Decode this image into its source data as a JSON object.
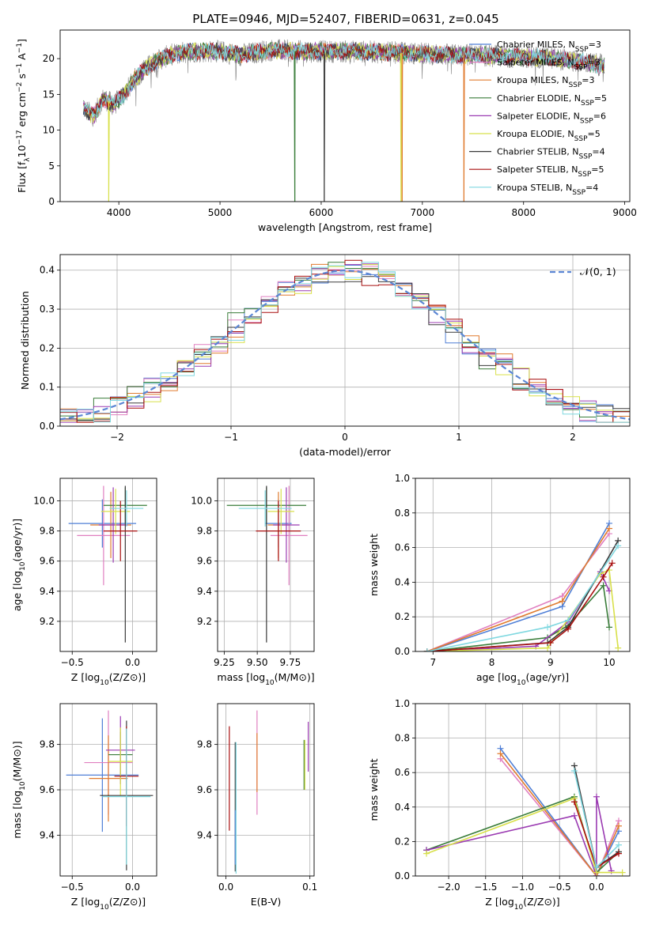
{
  "title": "PLATE=0946, MJD=52407, FIBERID=0631, z=0.045",
  "colors": [
    "#4f7fd6",
    "#e07fc0",
    "#e07b2f",
    "#3a7d3a",
    "#9b3bb2",
    "#d8e04a",
    "#3a3a3a",
    "#a80f0f",
    "#7fd8e0"
  ],
  "legend": [
    {
      "name": "Chabrier MILES, N",
      "sub": "SSP",
      "suffix": "=3"
    },
    {
      "name": "Salpeter MILES, N",
      "sub": "SSP",
      "suffix": "=3"
    },
    {
      "name": "Kroupa MILES, N",
      "sub": "SSP",
      "suffix": "=3"
    },
    {
      "name": "Chabrier ELODIE, N",
      "sub": "SSP",
      "suffix": "=5"
    },
    {
      "name": "Salpeter ELODIE, N",
      "sub": "SSP",
      "suffix": "=6"
    },
    {
      "name": "Kroupa ELODIE, N",
      "sub": "SSP",
      "suffix": "=5"
    },
    {
      "name": "Chabrier STELIB, N",
      "sub": "SSP",
      "suffix": "=4"
    },
    {
      "name": "Salpeter STELIB, N",
      "sub": "SSP",
      "suffix": "=5"
    },
    {
      "name": "Kroupa STELIB, N",
      "sub": "SSP",
      "suffix": "=4"
    }
  ],
  "chart_data": [
    {
      "id": "spectrum",
      "type": "line",
      "xlabel": "wavelength [Angstrom, rest frame]",
      "ylabel_parts": [
        "Flux [f",
        "λ",
        "10",
        "−17",
        " erg cm",
        "−2",
        " s",
        "−1",
        " A",
        "−1",
        "]"
      ],
      "xlim": [
        3420,
        9050
      ],
      "ylim": [
        0,
        24
      ],
      "xticks": [
        4000,
        5000,
        6000,
        7000,
        8000,
        9000
      ],
      "yticks": [
        0,
        5,
        10,
        15,
        20
      ],
      "data_range": [
        3650,
        8800
      ],
      "continuum": [
        [
          3650,
          13
        ],
        [
          3750,
          12
        ],
        [
          3850,
          14.5
        ],
        [
          3950,
          13.5
        ],
        [
          4050,
          15
        ],
        [
          4150,
          17
        ],
        [
          4250,
          18.5
        ],
        [
          4350,
          19.5
        ],
        [
          4500,
          20.5
        ],
        [
          4700,
          21
        ],
        [
          5000,
          21
        ],
        [
          5200,
          20.5
        ],
        [
          5500,
          21.2
        ],
        [
          5800,
          21
        ],
        [
          6100,
          21
        ],
        [
          6400,
          21
        ],
        [
          6800,
          20.8
        ],
        [
          7000,
          20.7
        ],
        [
          7300,
          20.5
        ],
        [
          7500,
          20.5
        ],
        [
          7800,
          20.3
        ],
        [
          8200,
          20.2
        ],
        [
          8600,
          19.5
        ],
        [
          8800,
          19
        ]
      ],
      "dropouts": [
        {
          "model": 5,
          "x": 3900
        },
        {
          "model": 3,
          "x": 5740
        },
        {
          "model": 6,
          "x": 6030
        },
        {
          "model": 2,
          "x": 6800
        },
        {
          "model": 5,
          "x": 6790
        },
        {
          "model": 2,
          "x": 7410
        }
      ]
    },
    {
      "id": "residuals",
      "type": "histogram",
      "xlabel": "(data-model)/error",
      "ylabel": "Normed distribution",
      "xlim": [
        -2.5,
        2.5
      ],
      "ylim": [
        0,
        0.44
      ],
      "xticks": [
        -2,
        -1,
        0,
        1,
        2
      ],
      "xticklabels": [
        "−2",
        "−1",
        "0",
        "1",
        "2"
      ],
      "yticks": [
        0,
        0.1,
        0.2,
        0.3,
        0.4
      ],
      "yticklabels": [
        "0.0",
        "0.1",
        "0.2",
        "0.3",
        "0.4"
      ],
      "bins": 34,
      "gaussian_label": "𝒩(0, 1)",
      "gaussian_color": "#5b86d4"
    },
    {
      "id": "z_age",
      "type": "errorbar",
      "xlabel_parts": [
        "Z [log",
        "10",
        "(Z/Z",
        "⊙",
        ")]"
      ],
      "ylabel_parts": [
        "age  [log",
        "10",
        "(age/yr)]"
      ],
      "xlim": [
        -0.6,
        0.2
      ],
      "ylim": [
        9.0,
        10.15
      ],
      "xticks": [
        -0.5,
        0.0
      ],
      "xticklabels": [
        "−0.5",
        "0.0"
      ],
      "yticks": [
        9.2,
        9.4,
        9.6,
        9.8,
        10.0
      ],
      "yticklabels": [
        "9.2",
        "9.4",
        "9.6",
        "9.8",
        "10.0"
      ],
      "points": [
        {
          "m": 0,
          "x": -0.25,
          "y": 9.85,
          "xerr": 0.28,
          "yerr": 0.16
        },
        {
          "m": 1,
          "x": -0.24,
          "y": 9.77,
          "xerr": 0.22,
          "yerr": 0.33
        },
        {
          "m": 2,
          "x": -0.18,
          "y": 9.84,
          "xerr": 0.17,
          "yerr": 0.22
        },
        {
          "m": 3,
          "x": -0.06,
          "y": 9.97,
          "xerr": 0.18,
          "yerr": 0.12
        },
        {
          "m": 4,
          "x": -0.16,
          "y": 9.84,
          "xerr": 0.12,
          "yerr": 0.25
        },
        {
          "m": 5,
          "x": -0.14,
          "y": 9.93,
          "xerr": 0.12,
          "yerr": 0.15
        },
        {
          "m": 6,
          "x": -0.06,
          "y": 9.58,
          "xerr": 0.0,
          "yerr": 0.52
        },
        {
          "m": 7,
          "x": -0.1,
          "y": 9.8,
          "xerr": 0.14,
          "yerr": 0.2
        },
        {
          "m": 8,
          "x": -0.05,
          "y": 9.95,
          "xerr": 0.14,
          "yerr": 0.12
        }
      ]
    },
    {
      "id": "mass_age",
      "type": "errorbar",
      "xlabel_parts": [
        "mass [log",
        "10",
        "(M/M",
        "⊙",
        ")]"
      ],
      "xlim": [
        9.2,
        9.93
      ],
      "ylim": [
        9.0,
        10.15
      ],
      "xticks": [
        9.25,
        9.5,
        9.75
      ],
      "xticklabels": [
        "9.25",
        "9.50",
        "9.75"
      ],
      "yticks": [
        9.2,
        9.4,
        9.6,
        9.8,
        10.0
      ],
      "yticklabels": [
        "9.2",
        "9.4",
        "9.6",
        "9.8",
        "10.0"
      ],
      "points": [
        {
          "m": 0,
          "x": 9.66,
          "y": 9.85,
          "xerr": 0.1,
          "yerr": 0.16
        },
        {
          "m": 1,
          "x": 9.74,
          "y": 9.77,
          "xerr": 0.14,
          "yerr": 0.33
        },
        {
          "m": 2,
          "x": 9.66,
          "y": 9.84,
          "xerr": 0.08,
          "yerr": 0.22
        },
        {
          "m": 3,
          "x": 9.57,
          "y": 9.97,
          "xerr": 0.3,
          "yerr": 0.12
        },
        {
          "m": 4,
          "x": 9.72,
          "y": 9.84,
          "xerr": 0.1,
          "yerr": 0.25
        },
        {
          "m": 5,
          "x": 9.68,
          "y": 9.93,
          "xerr": 0.1,
          "yerr": 0.15
        },
        {
          "m": 6,
          "x": 9.57,
          "y": 9.58,
          "xerr": 0.0,
          "yerr": 0.52
        },
        {
          "m": 7,
          "x": 9.66,
          "y": 9.8,
          "xerr": 0.17,
          "yerr": 0.2
        },
        {
          "m": 8,
          "x": 9.56,
          "y": 9.95,
          "xerr": 0.2,
          "yerr": 0.12
        }
      ]
    },
    {
      "id": "age_weight",
      "type": "line",
      "xlabel_parts": [
        "age  [log",
        "10",
        "(age/yr)]"
      ],
      "ylabel": "mass weight",
      "xlim": [
        6.7,
        10.35
      ],
      "ylim": [
        0,
        1
      ],
      "xticks": [
        7,
        8,
        9,
        10
      ],
      "xticklabels": [
        "7",
        "8",
        "9",
        "10"
      ],
      "yticks": [
        0,
        0.2,
        0.4,
        0.6,
        0.8,
        1.0
      ],
      "yticklabels": [
        "0.0",
        "0.2",
        "0.4",
        "0.6",
        "0.8",
        "1.0"
      ],
      "series": [
        {
          "m": 0,
          "x": [
            6.9,
            9.2,
            10.0
          ],
          "y": [
            0.0,
            0.26,
            0.74
          ]
        },
        {
          "m": 1,
          "x": 6.9,
          "xs": [
            6.9,
            9.2,
            10.0
          ],
          "y": [
            0.0,
            0.32,
            0.68
          ]
        },
        {
          "m": 2,
          "x": [
            6.9,
            9.2,
            10.0
          ],
          "y": [
            0.0,
            0.29,
            0.71
          ]
        },
        {
          "m": 3,
          "x": [
            6.9,
            8.95,
            9.3,
            9.9,
            10.0
          ],
          "y": [
            0.0,
            0.08,
            0.15,
            0.38,
            0.14
          ]
        },
        {
          "m": 4,
          "x": [
            6.9,
            8.75,
            9.3,
            9.85,
            10.0
          ],
          "y": [
            0.0,
            0.03,
            0.17,
            0.46,
            0.35
          ]
        },
        {
          "m": 5,
          "x": [
            6.9,
            8.95,
            9.85,
            10.0,
            10.15
          ],
          "y": [
            0.0,
            0.02,
            0.45,
            0.47,
            0.02
          ]
        },
        {
          "m": 6,
          "x": [
            6.9,
            8.95,
            9.3,
            10.15
          ],
          "y": [
            0.0,
            0.05,
            0.14,
            0.64
          ]
        },
        {
          "m": 7,
          "x": [
            6.9,
            9.0,
            9.3,
            9.9,
            10.05
          ],
          "y": [
            0.0,
            0.05,
            0.13,
            0.43,
            0.51
          ]
        },
        {
          "m": 8,
          "x": [
            6.9,
            8.95,
            9.3,
            10.15
          ],
          "y": [
            0.0,
            0.14,
            0.18,
            0.61
          ]
        }
      ]
    },
    {
      "id": "z_mass",
      "type": "errorbar",
      "xlabel_parts": [
        "Z [log",
        "10",
        "(Z/Z",
        "⊙",
        ")]"
      ],
      "ylabel_parts": [
        "mass [log",
        "10",
        "(M/M",
        "⊙",
        ")]"
      ],
      "xlim": [
        -0.6,
        0.2
      ],
      "ylim": [
        9.22,
        9.98
      ],
      "xticks": [
        -0.5,
        0.0
      ],
      "xticklabels": [
        "−0.5",
        "0.0"
      ],
      "yticks": [
        9.4,
        9.6,
        9.8
      ],
      "yticklabels": [
        "9.4",
        "9.6",
        "9.8"
      ],
      "points": [
        {
          "m": 0,
          "x": -0.25,
          "y": 9.665,
          "xerr": 0.3,
          "yerr": 0.25
        },
        {
          "m": 1,
          "x": -0.2,
          "y": 9.72,
          "xerr": 0.2,
          "yerr": 0.23
        },
        {
          "m": 2,
          "x": -0.2,
          "y": 9.65,
          "xerr": 0.16,
          "yerr": 0.19
        },
        {
          "m": 3,
          "x": -0.1,
          "y": 9.755,
          "xerr": 0.1,
          "yerr": 0.1
        },
        {
          "m": 4,
          "x": -0.1,
          "y": 9.775,
          "xerr": 0.12,
          "yerr": 0.15
        },
        {
          "m": 5,
          "x": -0.1,
          "y": 9.725,
          "xerr": 0.1,
          "yerr": 0.15
        },
        {
          "m": 6,
          "x": -0.05,
          "y": 9.575,
          "xerr": 0.22,
          "yerr": 0.33
        },
        {
          "m": 7,
          "x": -0.05,
          "y": 9.66,
          "xerr": 0.1,
          "yerr": 0.22
        },
        {
          "m": 8,
          "x": -0.05,
          "y": 9.57,
          "xerr": 0.2,
          "yerr": 0.3
        }
      ]
    },
    {
      "id": "ebv_mass",
      "type": "errorbar",
      "xlabel": "E(B-V)",
      "xlim": [
        -0.01,
        0.105
      ],
      "ylim": [
        9.22,
        9.98
      ],
      "xticks": [
        0.0,
        0.1
      ],
      "xticklabels": [
        "0.0",
        "0.1"
      ],
      "yticks": [
        9.4,
        9.6,
        9.8
      ],
      "yticklabels": [
        "9.4",
        "9.6",
        "9.8"
      ],
      "points": [
        {
          "m": 7,
          "x": 0.004,
          "y": 9.65,
          "xerr": 0,
          "yerr": 0.23
        },
        {
          "m": 6,
          "x": 0.011,
          "y": 9.525,
          "xerr": 0,
          "yerr": 0.285
        },
        {
          "m": 0,
          "x": 0.011,
          "y": 9.39,
          "xerr": 0,
          "yerr": 0.12
        },
        {
          "m": 8,
          "x": 0.012,
          "y": 9.52,
          "xerr": 0,
          "yerr": 0.29
        },
        {
          "m": 1,
          "x": 0.037,
          "y": 9.72,
          "xerr": 0,
          "yerr": 0.23
        },
        {
          "m": 2,
          "x": 0.037,
          "y": 9.72,
          "xerr": 0,
          "yerr": 0.13
        },
        {
          "m": 3,
          "x": 0.093,
          "y": 9.71,
          "xerr": 0,
          "yerr": 0.11
        },
        {
          "m": 5,
          "x": 0.094,
          "y": 9.71,
          "xerr": 0,
          "yerr": 0.11
        },
        {
          "m": 4,
          "x": 0.098,
          "y": 9.79,
          "xerr": 0,
          "yerr": 0.11
        }
      ]
    },
    {
      "id": "z_weight",
      "type": "line",
      "xlabel_parts": [
        "Z [log",
        "10",
        "(Z/Z",
        "⊙",
        ")]"
      ],
      "ylabel": "mass weight",
      "xlim": [
        -2.45,
        0.45
      ],
      "ylim": [
        0,
        1
      ],
      "xticks": [
        -2.0,
        -1.5,
        -1.0,
        -0.5,
        0.0
      ],
      "xticklabels": [
        "−2.0",
        "−1.5",
        "−1.0",
        "−0.5",
        "0.0"
      ],
      "yticks": [
        0,
        0.2,
        0.4,
        0.6,
        0.8,
        1.0
      ],
      "yticklabels": [
        "0.0",
        "0.2",
        "0.4",
        "0.6",
        "0.8",
        "1.0"
      ],
      "series": [
        {
          "m": 0,
          "x": [
            -1.3,
            0.0,
            0.3
          ],
          "y": [
            0.74,
            0.0,
            0.26
          ]
        },
        {
          "m": 1,
          "x": [
            -1.3,
            0.0,
            0.3
          ],
          "y": [
            0.68,
            0.0,
            0.32
          ]
        },
        {
          "m": 2,
          "x": [
            -1.3,
            0.0,
            0.3
          ],
          "y": [
            0.71,
            0.0,
            0.29
          ]
        },
        {
          "m": 3,
          "x": [
            -2.3,
            -0.3,
            0.0,
            0.3
          ],
          "y": [
            0.15,
            0.46,
            0.02,
            0.14
          ]
        },
        {
          "m": 4,
          "x": [
            -2.3,
            -0.3,
            0.0,
            0.0,
            0.2
          ],
          "y": [
            0.15,
            0.35,
            0.0,
            0.46,
            0.03
          ]
        },
        {
          "m": 5,
          "x": [
            -2.3,
            -0.3,
            0.0,
            0.35
          ],
          "y": [
            0.13,
            0.45,
            0.02,
            0.02
          ]
        },
        {
          "m": 6,
          "x": [
            -0.3,
            0.0,
            0.3
          ],
          "y": [
            0.64,
            0.05,
            0.14
          ]
        },
        {
          "m": 7,
          "x": [
            -0.3,
            0.0,
            0.3
          ],
          "y": [
            0.43,
            0.05,
            0.13
          ]
        },
        {
          "m": 8,
          "x": [
            -0.3,
            0.0,
            0.3
          ],
          "y": [
            0.61,
            0.05,
            0.18
          ]
        }
      ]
    }
  ]
}
